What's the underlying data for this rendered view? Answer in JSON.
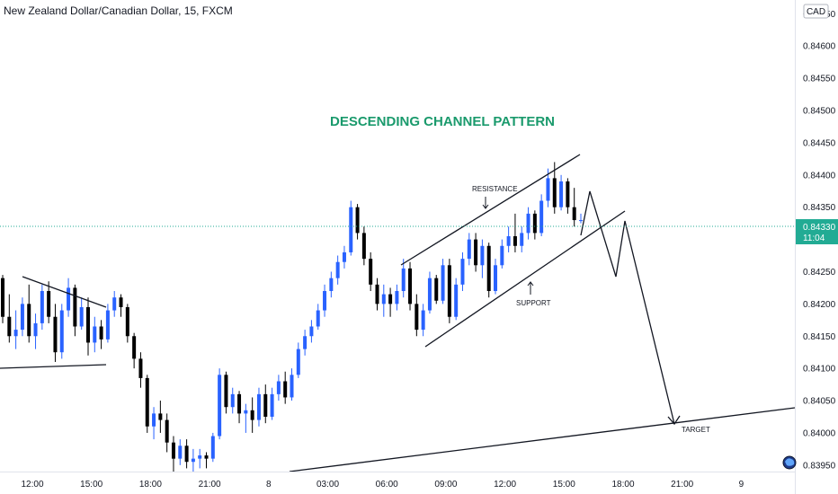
{
  "header": {
    "symbol_title": "New Zealand Dollar/Canadian Dollar, 15, FXCM"
  },
  "price_axis": {
    "currency_label": "CAD",
    "current_price": "0.84330",
    "countdown": "11:04"
  },
  "annotations": {
    "heading": "DESCENDING CHANNEL PATTERN",
    "resistance": "RESISTANCE",
    "support": "SUPPORT",
    "target": "TARGET"
  },
  "colors": {
    "up_candle": "#2962ff",
    "down_candle": "#000000",
    "heading": "#1a9a6c",
    "price_badge": "#22ab94",
    "price_line": "#22ab94"
  },
  "chart_data": {
    "type": "candlestick",
    "title": "New Zealand Dollar/Canadian Dollar, 15, FXCM",
    "ylim": [
      0.8394,
      0.8467
    ],
    "y_ticks": [
      "0.84650",
      "0.84600",
      "0.84550",
      "0.84500",
      "0.84450",
      "0.84400",
      "0.84350",
      "0.84300",
      "0.84250",
      "0.84200",
      "0.84150",
      "0.84100",
      "0.84050",
      "0.84000",
      "0.83950"
    ],
    "x_ticks": [
      "12:00",
      "15:00",
      "18:00",
      "21:00",
      "8",
      "03:00",
      "06:00",
      "09:00",
      "12:00",
      "15:00",
      "18:00",
      "21:00",
      "9"
    ],
    "candles_ohlc": [
      [
        0.8424,
        0.84245,
        0.8417,
        0.8418
      ],
      [
        0.8418,
        0.84215,
        0.8414,
        0.8415
      ],
      [
        0.8415,
        0.8419,
        0.8413,
        0.8416
      ],
      [
        0.8416,
        0.8421,
        0.8415,
        0.842
      ],
      [
        0.842,
        0.8423,
        0.8414,
        0.8415
      ],
      [
        0.8415,
        0.84185,
        0.8413,
        0.8417
      ],
      [
        0.8417,
        0.8423,
        0.8416,
        0.8422
      ],
      [
        0.8422,
        0.84235,
        0.8417,
        0.8418
      ],
      [
        0.8418,
        0.842,
        0.8411,
        0.84125
      ],
      [
        0.84125,
        0.842,
        0.84115,
        0.8419
      ],
      [
        0.8419,
        0.8424,
        0.8418,
        0.84225
      ],
      [
        0.84225,
        0.8423,
        0.8415,
        0.84165
      ],
      [
        0.84165,
        0.8421,
        0.8416,
        0.84195
      ],
      [
        0.84195,
        0.8421,
        0.8412,
        0.8414
      ],
      [
        0.8414,
        0.8418,
        0.84125,
        0.84165
      ],
      [
        0.84165,
        0.84175,
        0.8413,
        0.84145
      ],
      [
        0.84145,
        0.842,
        0.8414,
        0.8419
      ],
      [
        0.8419,
        0.8422,
        0.8418,
        0.8421
      ],
      [
        0.8421,
        0.84215,
        0.8418,
        0.84195
      ],
      [
        0.84195,
        0.842,
        0.8414,
        0.8415
      ],
      [
        0.8415,
        0.84155,
        0.841,
        0.84115
      ],
      [
        0.84115,
        0.84125,
        0.8407,
        0.84085
      ],
      [
        0.84085,
        0.8409,
        0.84,
        0.8401
      ],
      [
        0.8401,
        0.8404,
        0.8399,
        0.8403
      ],
      [
        0.8403,
        0.8405,
        0.84,
        0.8402
      ],
      [
        0.8402,
        0.8403,
        0.8397,
        0.83985
      ],
      [
        0.83985,
        0.83995,
        0.8394,
        0.8396
      ],
      [
        0.8396,
        0.8399,
        0.8395,
        0.8398
      ],
      [
        0.8398,
        0.8399,
        0.83945,
        0.83955
      ],
      [
        0.83955,
        0.83975,
        0.8394,
        0.8396
      ],
      [
        0.8396,
        0.83975,
        0.83945,
        0.83965
      ],
      [
        0.83965,
        0.8397,
        0.83945,
        0.8396
      ],
      [
        0.8396,
        0.84,
        0.83955,
        0.83995
      ],
      [
        0.83995,
        0.841,
        0.8399,
        0.8409
      ],
      [
        0.8409,
        0.84095,
        0.8403,
        0.8404
      ],
      [
        0.8404,
        0.8407,
        0.8403,
        0.8406
      ],
      [
        0.8406,
        0.84065,
        0.84015,
        0.8403
      ],
      [
        0.8403,
        0.84045,
        0.84,
        0.84035
      ],
      [
        0.84035,
        0.84055,
        0.84,
        0.8402
      ],
      [
        0.8402,
        0.8407,
        0.8401,
        0.8406
      ],
      [
        0.8406,
        0.84075,
        0.84015,
        0.84025
      ],
      [
        0.84025,
        0.8407,
        0.8402,
        0.8406
      ],
      [
        0.8406,
        0.8409,
        0.8405,
        0.8408
      ],
      [
        0.8408,
        0.84095,
        0.84045,
        0.84055
      ],
      [
        0.84055,
        0.841,
        0.8405,
        0.8409
      ],
      [
        0.8409,
        0.8414,
        0.84085,
        0.8413
      ],
      [
        0.8413,
        0.8416,
        0.8412,
        0.8415
      ],
      [
        0.8415,
        0.84175,
        0.8414,
        0.84165
      ],
      [
        0.84165,
        0.842,
        0.8416,
        0.8419
      ],
      [
        0.8419,
        0.8423,
        0.8418,
        0.8422
      ],
      [
        0.8422,
        0.8425,
        0.8421,
        0.8424
      ],
      [
        0.8424,
        0.84275,
        0.8423,
        0.84265
      ],
      [
        0.84265,
        0.8429,
        0.84255,
        0.8428
      ],
      [
        0.8428,
        0.8436,
        0.84275,
        0.8435
      ],
      [
        0.8435,
        0.84355,
        0.843,
        0.8431
      ],
      [
        0.8431,
        0.8432,
        0.8426,
        0.8427
      ],
      [
        0.8427,
        0.8428,
        0.8422,
        0.8423
      ],
      [
        0.8423,
        0.8424,
        0.8419,
        0.842
      ],
      [
        0.842,
        0.8423,
        0.8418,
        0.84215
      ],
      [
        0.84215,
        0.84225,
        0.8418,
        0.842
      ],
      [
        0.842,
        0.8423,
        0.8419,
        0.8422
      ],
      [
        0.8422,
        0.8427,
        0.8421,
        0.84255
      ],
      [
        0.84255,
        0.84265,
        0.8419,
        0.842
      ],
      [
        0.842,
        0.84215,
        0.8415,
        0.8416
      ],
      [
        0.8416,
        0.842,
        0.8415,
        0.8419
      ],
      [
        0.8419,
        0.8425,
        0.84185,
        0.8424
      ],
      [
        0.8424,
        0.84245,
        0.842,
        0.84205
      ],
      [
        0.84205,
        0.8427,
        0.842,
        0.8426
      ],
      [
        0.8426,
        0.8427,
        0.8417,
        0.8418
      ],
      [
        0.8418,
        0.8424,
        0.84175,
        0.8423
      ],
      [
        0.8423,
        0.8428,
        0.8422,
        0.8427
      ],
      [
        0.8427,
        0.8431,
        0.8426,
        0.843
      ],
      [
        0.843,
        0.8431,
        0.8425,
        0.8426
      ],
      [
        0.8426,
        0.843,
        0.8424,
        0.8429
      ],
      [
        0.8429,
        0.84295,
        0.8421,
        0.8422
      ],
      [
        0.8422,
        0.8427,
        0.84215,
        0.8426
      ],
      [
        0.8426,
        0.843,
        0.84255,
        0.8429
      ],
      [
        0.8429,
        0.8432,
        0.8428,
        0.84305
      ],
      [
        0.84305,
        0.8434,
        0.8428,
        0.8429
      ],
      [
        0.8429,
        0.8432,
        0.8428,
        0.8431
      ],
      [
        0.8431,
        0.8435,
        0.843,
        0.8434
      ],
      [
        0.8434,
        0.84345,
        0.843,
        0.8431
      ],
      [
        0.8431,
        0.8437,
        0.84305,
        0.8436
      ],
      [
        0.8436,
        0.8441,
        0.8435,
        0.84395
      ],
      [
        0.84395,
        0.8442,
        0.8434,
        0.8435
      ],
      [
        0.8435,
        0.844,
        0.84345,
        0.8439
      ],
      [
        0.8439,
        0.84395,
        0.8434,
        0.8435
      ],
      [
        0.8435,
        0.8438,
        0.8432,
        0.8433
      ],
      [
        0.8433,
        0.8434,
        0.84325,
        0.8433
      ]
    ]
  }
}
